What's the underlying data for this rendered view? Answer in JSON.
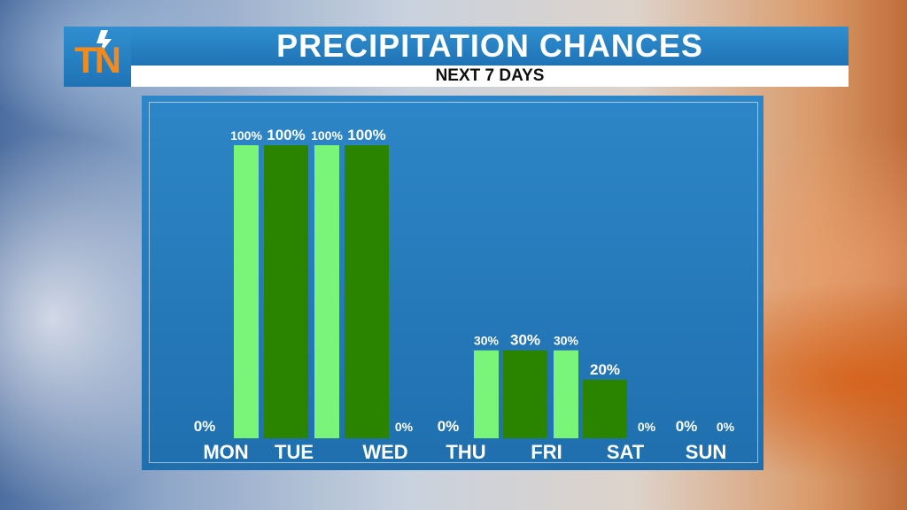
{
  "header": {
    "title": "PRECIPITATION CHANCES",
    "subtitle": "NEXT 7 DAYS"
  },
  "logo": {
    "text": "TN",
    "icon": "lightning-bolt-icon"
  },
  "colors": {
    "light_bar": "#7af57a",
    "dark_bar": "#2b8400",
    "panel": "#2377b8",
    "header": "#2a86c8",
    "logo": "#f28a1e"
  },
  "chart_data": {
    "type": "bar",
    "title": "PRECIPITATION CHANCES",
    "subtitle": "NEXT 7 DAYS",
    "categories": [
      "MON",
      "TUE",
      "WED",
      "THU",
      "FRI",
      "SAT",
      "SUN"
    ],
    "bars": [
      {
        "value": 0,
        "label": "0%"
      },
      {
        "value": 100,
        "label": "100%"
      },
      {
        "value": 100,
        "label": "100%"
      },
      {
        "value": 100,
        "label": "100%"
      },
      {
        "value": 100,
        "label": "100%"
      },
      {
        "value": 0,
        "label": "0%"
      },
      {
        "value": 0,
        "label": "0%"
      },
      {
        "value": 30,
        "label": "30%"
      },
      {
        "value": 30,
        "label": "30%"
      },
      {
        "value": 30,
        "label": "30%"
      },
      {
        "value": 20,
        "label": "20%"
      },
      {
        "value": 0,
        "label": "0%"
      },
      {
        "value": 0,
        "label": "0%"
      },
      {
        "value": 0,
        "label": "0%"
      }
    ],
    "ylim": [
      0,
      100
    ],
    "grid": false,
    "legend": "none"
  }
}
